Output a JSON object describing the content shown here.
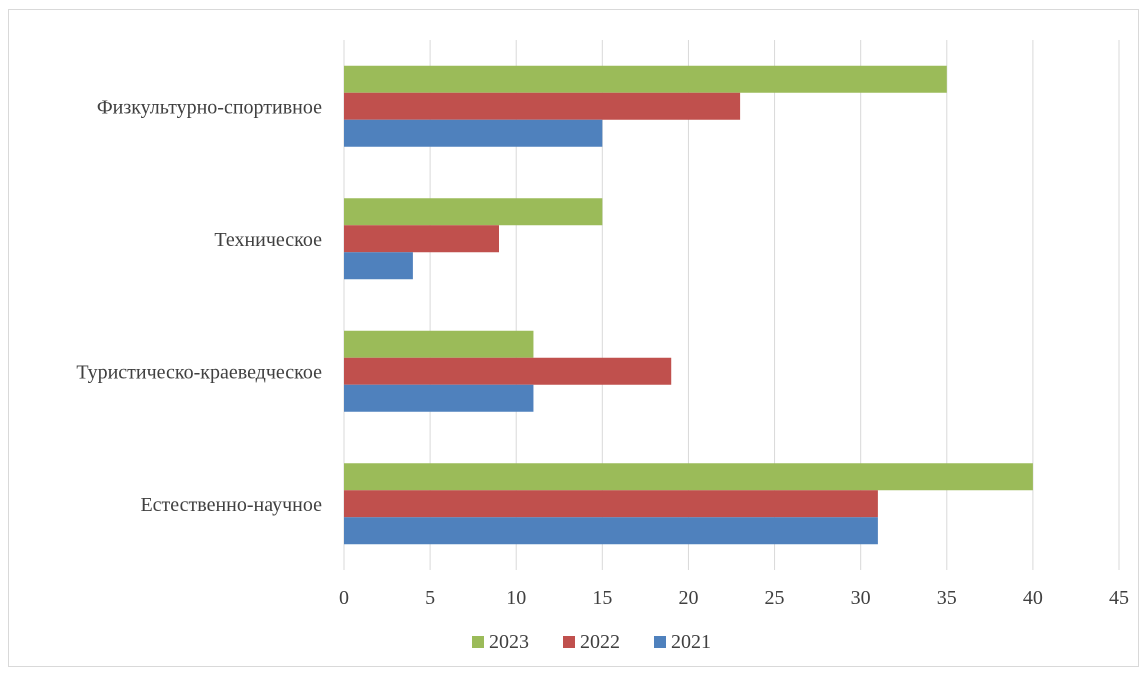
{
  "chart_data": {
    "type": "bar",
    "orientation": "horizontal",
    "categories": [
      "Естественно-научное",
      "Туристическо-краеведческое",
      "Техническое",
      "Физкультурно-спортивное"
    ],
    "series": [
      {
        "name": "2021",
        "color": "#4f81bd",
        "values": [
          31,
          11,
          4,
          15
        ]
      },
      {
        "name": "2022",
        "color": "#c0504d",
        "values": [
          31,
          19,
          9,
          23
        ]
      },
      {
        "name": "2023",
        "color": "#9bbb59",
        "values": [
          40,
          11,
          15,
          35
        ]
      }
    ],
    "xlim": [
      0,
      45
    ],
    "x_ticks": [
      "0",
      "5",
      "10",
      "15",
      "20",
      "25",
      "30",
      "35",
      "40",
      "45"
    ],
    "grid": "vertical",
    "legend_position": "bottom",
    "legend_order": [
      "2023",
      "2022",
      "2021"
    ]
  }
}
